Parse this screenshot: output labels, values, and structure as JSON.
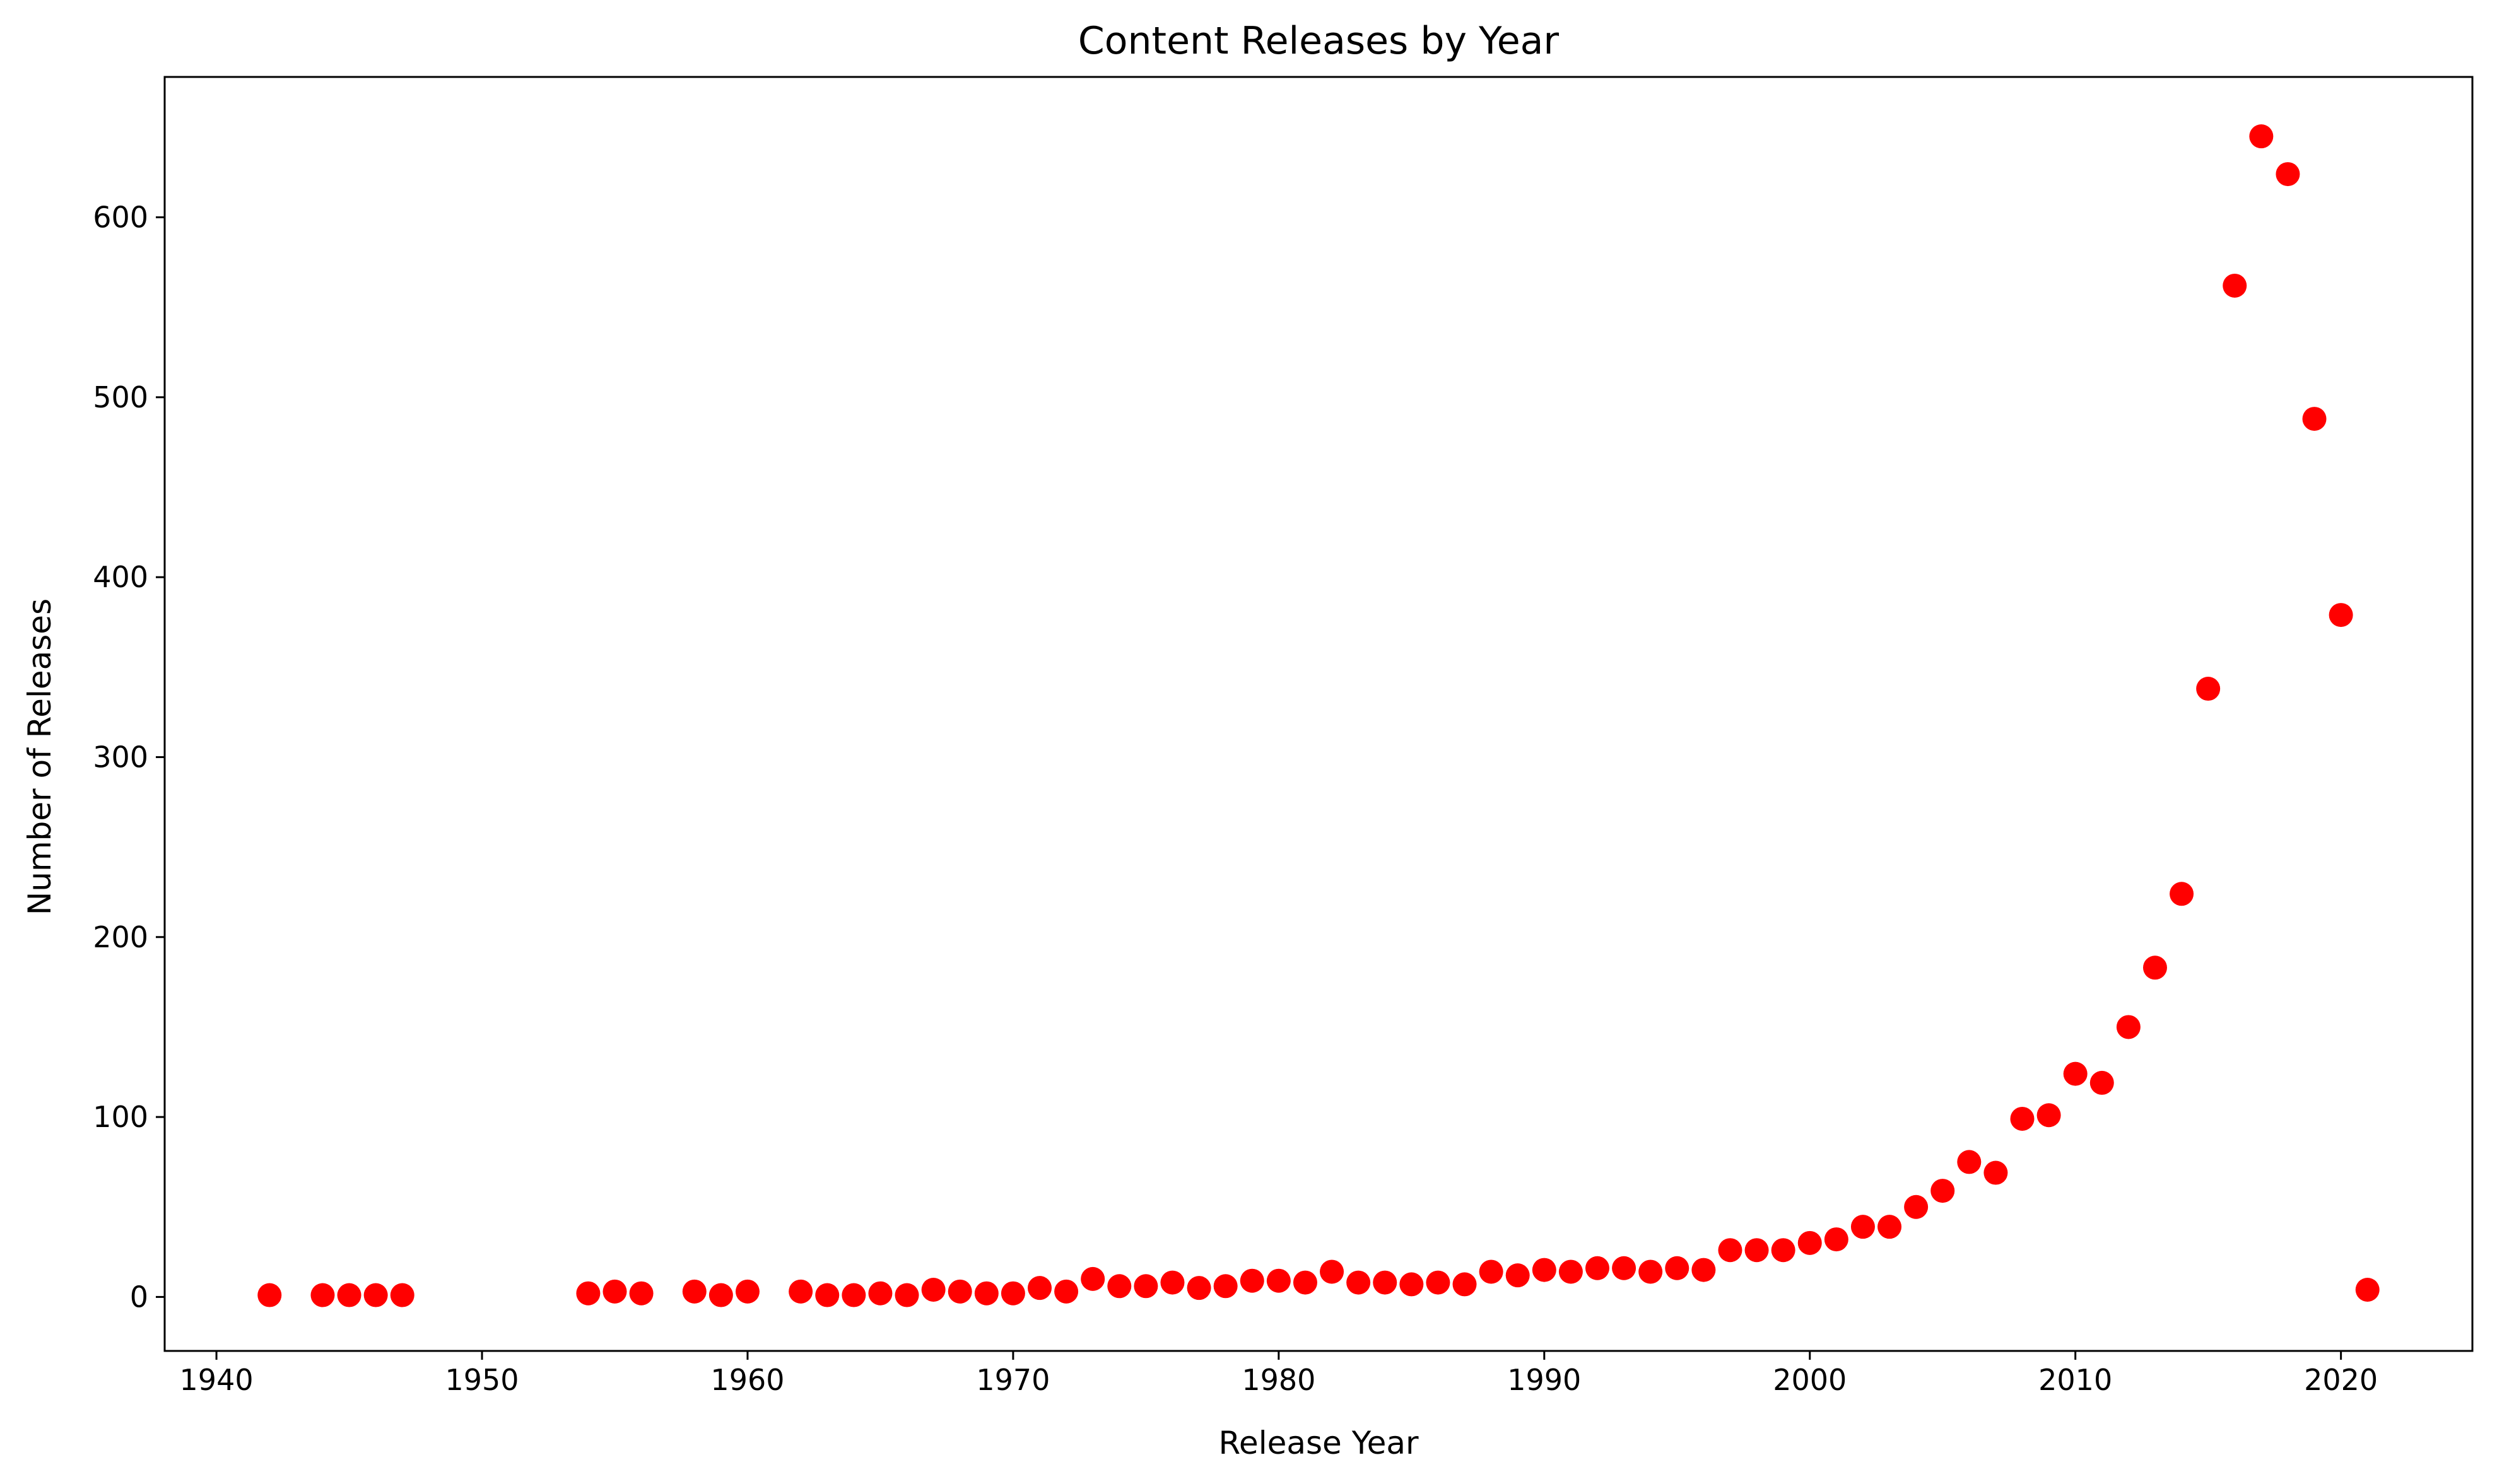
{
  "chart_data": {
    "type": "scatter",
    "title": "Content Releases by Year",
    "xlabel": "Release Year",
    "ylabel": "Number of Releases",
    "xlim": [
      1938.05,
      2024.95
    ],
    "ylim": [
      -30,
      678
    ],
    "xticks": [
      1940,
      1950,
      1960,
      1970,
      1980,
      1990,
      2000,
      2010,
      2020
    ],
    "yticks": [
      0,
      100,
      200,
      300,
      400,
      500,
      600
    ],
    "grid": false,
    "legend": "none",
    "marker_color": "#ff0000",
    "x": [
      1942,
      1944,
      1945,
      1946,
      1947,
      1954,
      1955,
      1956,
      1958,
      1959,
      1960,
      1962,
      1963,
      1964,
      1965,
      1966,
      1967,
      1968,
      1969,
      1970,
      1971,
      1972,
      1973,
      1974,
      1975,
      1976,
      1977,
      1978,
      1979,
      1980,
      1981,
      1982,
      1983,
      1984,
      1985,
      1986,
      1987,
      1988,
      1989,
      1990,
      1991,
      1992,
      1993,
      1994,
      1995,
      1996,
      1997,
      1998,
      1999,
      2000,
      2001,
      2002,
      2003,
      2004,
      2005,
      2006,
      2007,
      2008,
      2009,
      2010,
      2011,
      2012,
      2013,
      2014,
      2015,
      2016,
      2017,
      2018,
      2019,
      2020,
      2021
    ],
    "y": [
      1,
      1,
      1,
      1,
      1,
      2,
      3,
      2,
      3,
      1,
      3,
      3,
      1,
      1,
      2,
      1,
      4,
      3,
      2,
      2,
      5,
      3,
      10,
      6,
      6,
      8,
      5,
      6,
      9,
      9,
      8,
      14,
      8,
      8,
      7,
      8,
      7,
      14,
      12,
      15,
      14,
      16,
      16,
      14,
      16,
      15,
      26,
      26,
      26,
      30,
      32,
      39,
      39,
      50,
      59,
      75,
      69,
      99,
      101,
      124,
      119,
      150,
      183,
      224,
      338,
      562,
      645,
      624,
      488,
      379,
      4
    ]
  }
}
